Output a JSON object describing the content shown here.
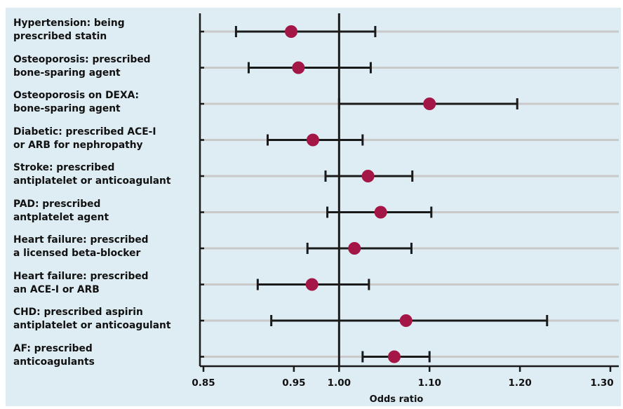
{
  "chart_data": {
    "type": "forest",
    "title": "",
    "xlabel": "Odds ratio",
    "ylabel": "",
    "xlim": [
      0.85,
      1.3
    ],
    "xticks": [
      0.85,
      0.95,
      1.0,
      1.1,
      1.2,
      1.3
    ],
    "xtick_labels": [
      "0.85",
      "0.95",
      "1.00",
      "1.10",
      "1.20",
      "1.30"
    ],
    "reference_line": 1.0,
    "grid": "horizontal row lines",
    "colors": {
      "point": "#a31645",
      "line": "#1a1a1a",
      "row_line": "#c9c9c9",
      "background": "#deedf3"
    },
    "rows": [
      {
        "label": [
          "Hypertension: being",
          "prescribed statin"
        ],
        "or": 0.947,
        "lo": 0.886,
        "hi": 1.04
      },
      {
        "label": [
          "Osteoporosis: prescribed",
          "bone-sparing agent"
        ],
        "or": 0.955,
        "lo": 0.9,
        "hi": 1.035
      },
      {
        "label": [
          "Osteoporosis on DEXA:",
          "bone-sparing agent"
        ],
        "or": 1.1,
        "lo": 1.0,
        "hi": 1.197
      },
      {
        "label": [
          "Diabetic: prescribed ACE-I",
          "or ARB for nephropathy"
        ],
        "or": 0.971,
        "lo": 0.921,
        "hi": 1.026
      },
      {
        "label": [
          "Stroke: prescribed",
          "antiplatelet or anticoagulant"
        ],
        "or": 1.032,
        "lo": 0.985,
        "hi": 1.081
      },
      {
        "label": [
          "PAD: prescribed",
          "antplatelet agent"
        ],
        "or": 1.046,
        "lo": 0.987,
        "hi": 1.102
      },
      {
        "label": [
          "Heart failure: prescribed",
          "a licensed beta-blocker"
        ],
        "or": 1.017,
        "lo": 0.965,
        "hi": 1.08
      },
      {
        "label": [
          "Heart failure: prescribed",
          "an ACE-I or ARB"
        ],
        "or": 0.97,
        "lo": 0.91,
        "hi": 1.033
      },
      {
        "label": [
          "CHD: prescribed aspirin",
          "antiplatelet or anticoagulant"
        ],
        "or": 1.074,
        "lo": 0.925,
        "hi": 1.23
      },
      {
        "label": [
          "AF: prescribed",
          "anticoagulants"
        ],
        "or": 1.061,
        "lo": 1.026,
        "hi": 1.1
      }
    ]
  }
}
